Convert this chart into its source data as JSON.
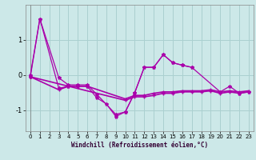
{
  "bg_color": "#cce8e8",
  "grid_color": "#aad0d0",
  "line_color": "#aa00aa",
  "xlabel": "Windchill (Refroidissement éolien,°C)",
  "xlim": [
    -0.5,
    23.5
  ],
  "ylim": [
    -1.6,
    2.0
  ],
  "yticks": [
    -1,
    0,
    1
  ],
  "xticks": [
    0,
    1,
    2,
    3,
    4,
    5,
    6,
    7,
    8,
    9,
    10,
    11,
    12,
    13,
    14,
    15,
    16,
    17,
    18,
    19,
    20,
    21,
    22,
    23
  ],
  "s1x": [
    0,
    1,
    3,
    4,
    5,
    6,
    7,
    9,
    10,
    11,
    12,
    13,
    14,
    15,
    16,
    17,
    20,
    21,
    22,
    23
  ],
  "s1y": [
    0.0,
    1.6,
    -0.08,
    -0.28,
    -0.28,
    -0.28,
    -0.55,
    -1.12,
    -1.05,
    -0.5,
    0.22,
    0.22,
    0.58,
    0.35,
    0.28,
    0.22,
    -0.48,
    -0.32,
    -0.52,
    -0.48
  ],
  "s2x": [
    0,
    1,
    3,
    4,
    5,
    6,
    7,
    8,
    9,
    10,
    11,
    12,
    13,
    14,
    15,
    16,
    17
  ],
  "s2y": [
    -0.05,
    1.6,
    -0.38,
    -0.32,
    -0.32,
    -0.32,
    -0.65,
    -0.82,
    -1.18,
    -1.05,
    -0.5,
    0.22,
    0.22,
    0.58,
    0.35,
    0.28,
    0.22
  ],
  "s3x": [
    0,
    3,
    4,
    5,
    6,
    10,
    11,
    12,
    13,
    14,
    15,
    16,
    17,
    18,
    19,
    20,
    21,
    22,
    23
  ],
  "s3y": [
    -0.05,
    -0.42,
    -0.32,
    -0.32,
    -0.32,
    -0.68,
    -0.58,
    -0.58,
    -0.52,
    -0.48,
    -0.48,
    -0.45,
    -0.45,
    -0.45,
    -0.42,
    -0.48,
    -0.45,
    -0.48,
    -0.45
  ],
  "s4x": [
    0,
    10,
    11,
    12,
    13,
    14,
    15,
    16,
    17,
    18,
    19,
    20,
    21,
    22,
    23
  ],
  "s4y": [
    -0.05,
    -0.72,
    -0.62,
    -0.62,
    -0.58,
    -0.52,
    -0.52,
    -0.48,
    -0.48,
    -0.48,
    -0.45,
    -0.52,
    -0.48,
    -0.52,
    -0.48
  ]
}
